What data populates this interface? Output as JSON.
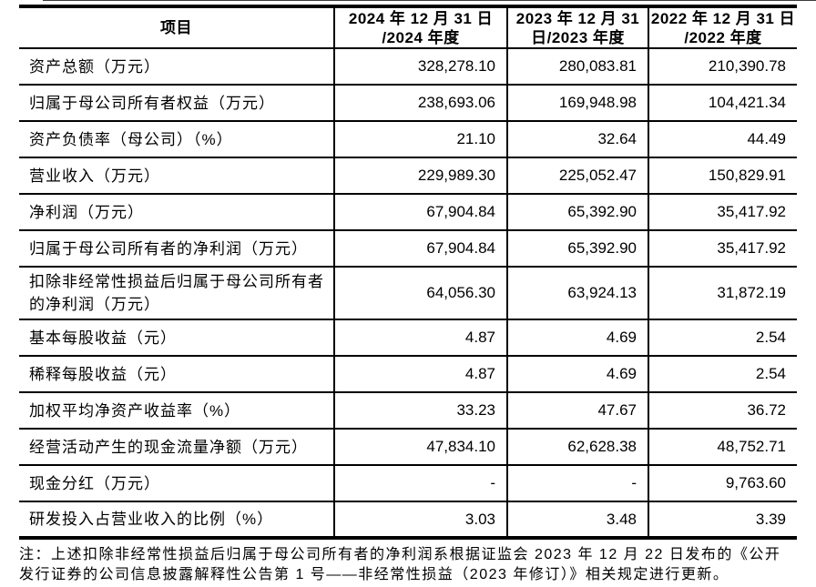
{
  "table": {
    "header": {
      "item": "项目",
      "col_2024": [
        "2024 年 12 月 31 日",
        "/2024 年度"
      ],
      "col_2023": [
        "2023 年 12 月 31",
        "日/2023 年度"
      ],
      "col_2022": [
        "2022 年 12 月 31 日",
        "/2022 年度"
      ]
    },
    "rows": [
      {
        "label": "资产总额（万元）",
        "v2024": "328,278.10",
        "v2023": "280,083.81",
        "v2022": "210,390.78"
      },
      {
        "label": "归属于母公司所有者权益（万元）",
        "v2024": "238,693.06",
        "v2023": "169,948.98",
        "v2022": "104,421.34"
      },
      {
        "label": "资产负债率（母公司）（%）",
        "v2024": "21.10",
        "v2023": "32.64",
        "v2022": "44.49"
      },
      {
        "label": "营业收入（万元）",
        "v2024": "229,989.30",
        "v2023": "225,052.47",
        "v2022": "150,829.91"
      },
      {
        "label": "净利润（万元）",
        "v2024": "67,904.84",
        "v2023": "65,392.90",
        "v2022": "35,417.92"
      },
      {
        "label": "归属于母公司所有者的净利润（万元）",
        "v2024": "67,904.84",
        "v2023": "65,392.90",
        "v2022": "35,417.92"
      },
      {
        "label": "扣除非经常性损益后归属于母公司所有者的净利润（万元）",
        "v2024": "64,056.30",
        "v2023": "63,924.13",
        "v2022": "31,872.19"
      },
      {
        "label": "基本每股收益（元）",
        "v2024": "4.87",
        "v2023": "4.69",
        "v2022": "2.54"
      },
      {
        "label": "稀释每股收益（元）",
        "v2024": "4.87",
        "v2023": "4.69",
        "v2022": "2.54"
      },
      {
        "label": "加权平均净资产收益率（%）",
        "v2024": "33.23",
        "v2023": "47.67",
        "v2022": "36.72"
      },
      {
        "label": "经营活动产生的现金流量净额（万元）",
        "v2024": "47,834.10",
        "v2023": "62,628.38",
        "v2022": "48,752.71"
      },
      {
        "label": "现金分红（万元）",
        "v2024": "-",
        "v2023": "-",
        "v2022": "9,763.60"
      },
      {
        "label": "研发投入占营业收入的比例（%）",
        "v2024": "3.03",
        "v2023": "3.48",
        "v2022": "3.39"
      }
    ]
  },
  "note": {
    "line1": "注：上述扣除非经常性损益后归属于母公司所有者的净利润系根据证监会 2023 年 12 月 22 日发布的《公开",
    "line2": "发行证券的公司信息披露解释性公告第 1 号——非经常性损益（2023 年修订）》相关规定进行更新。"
  }
}
